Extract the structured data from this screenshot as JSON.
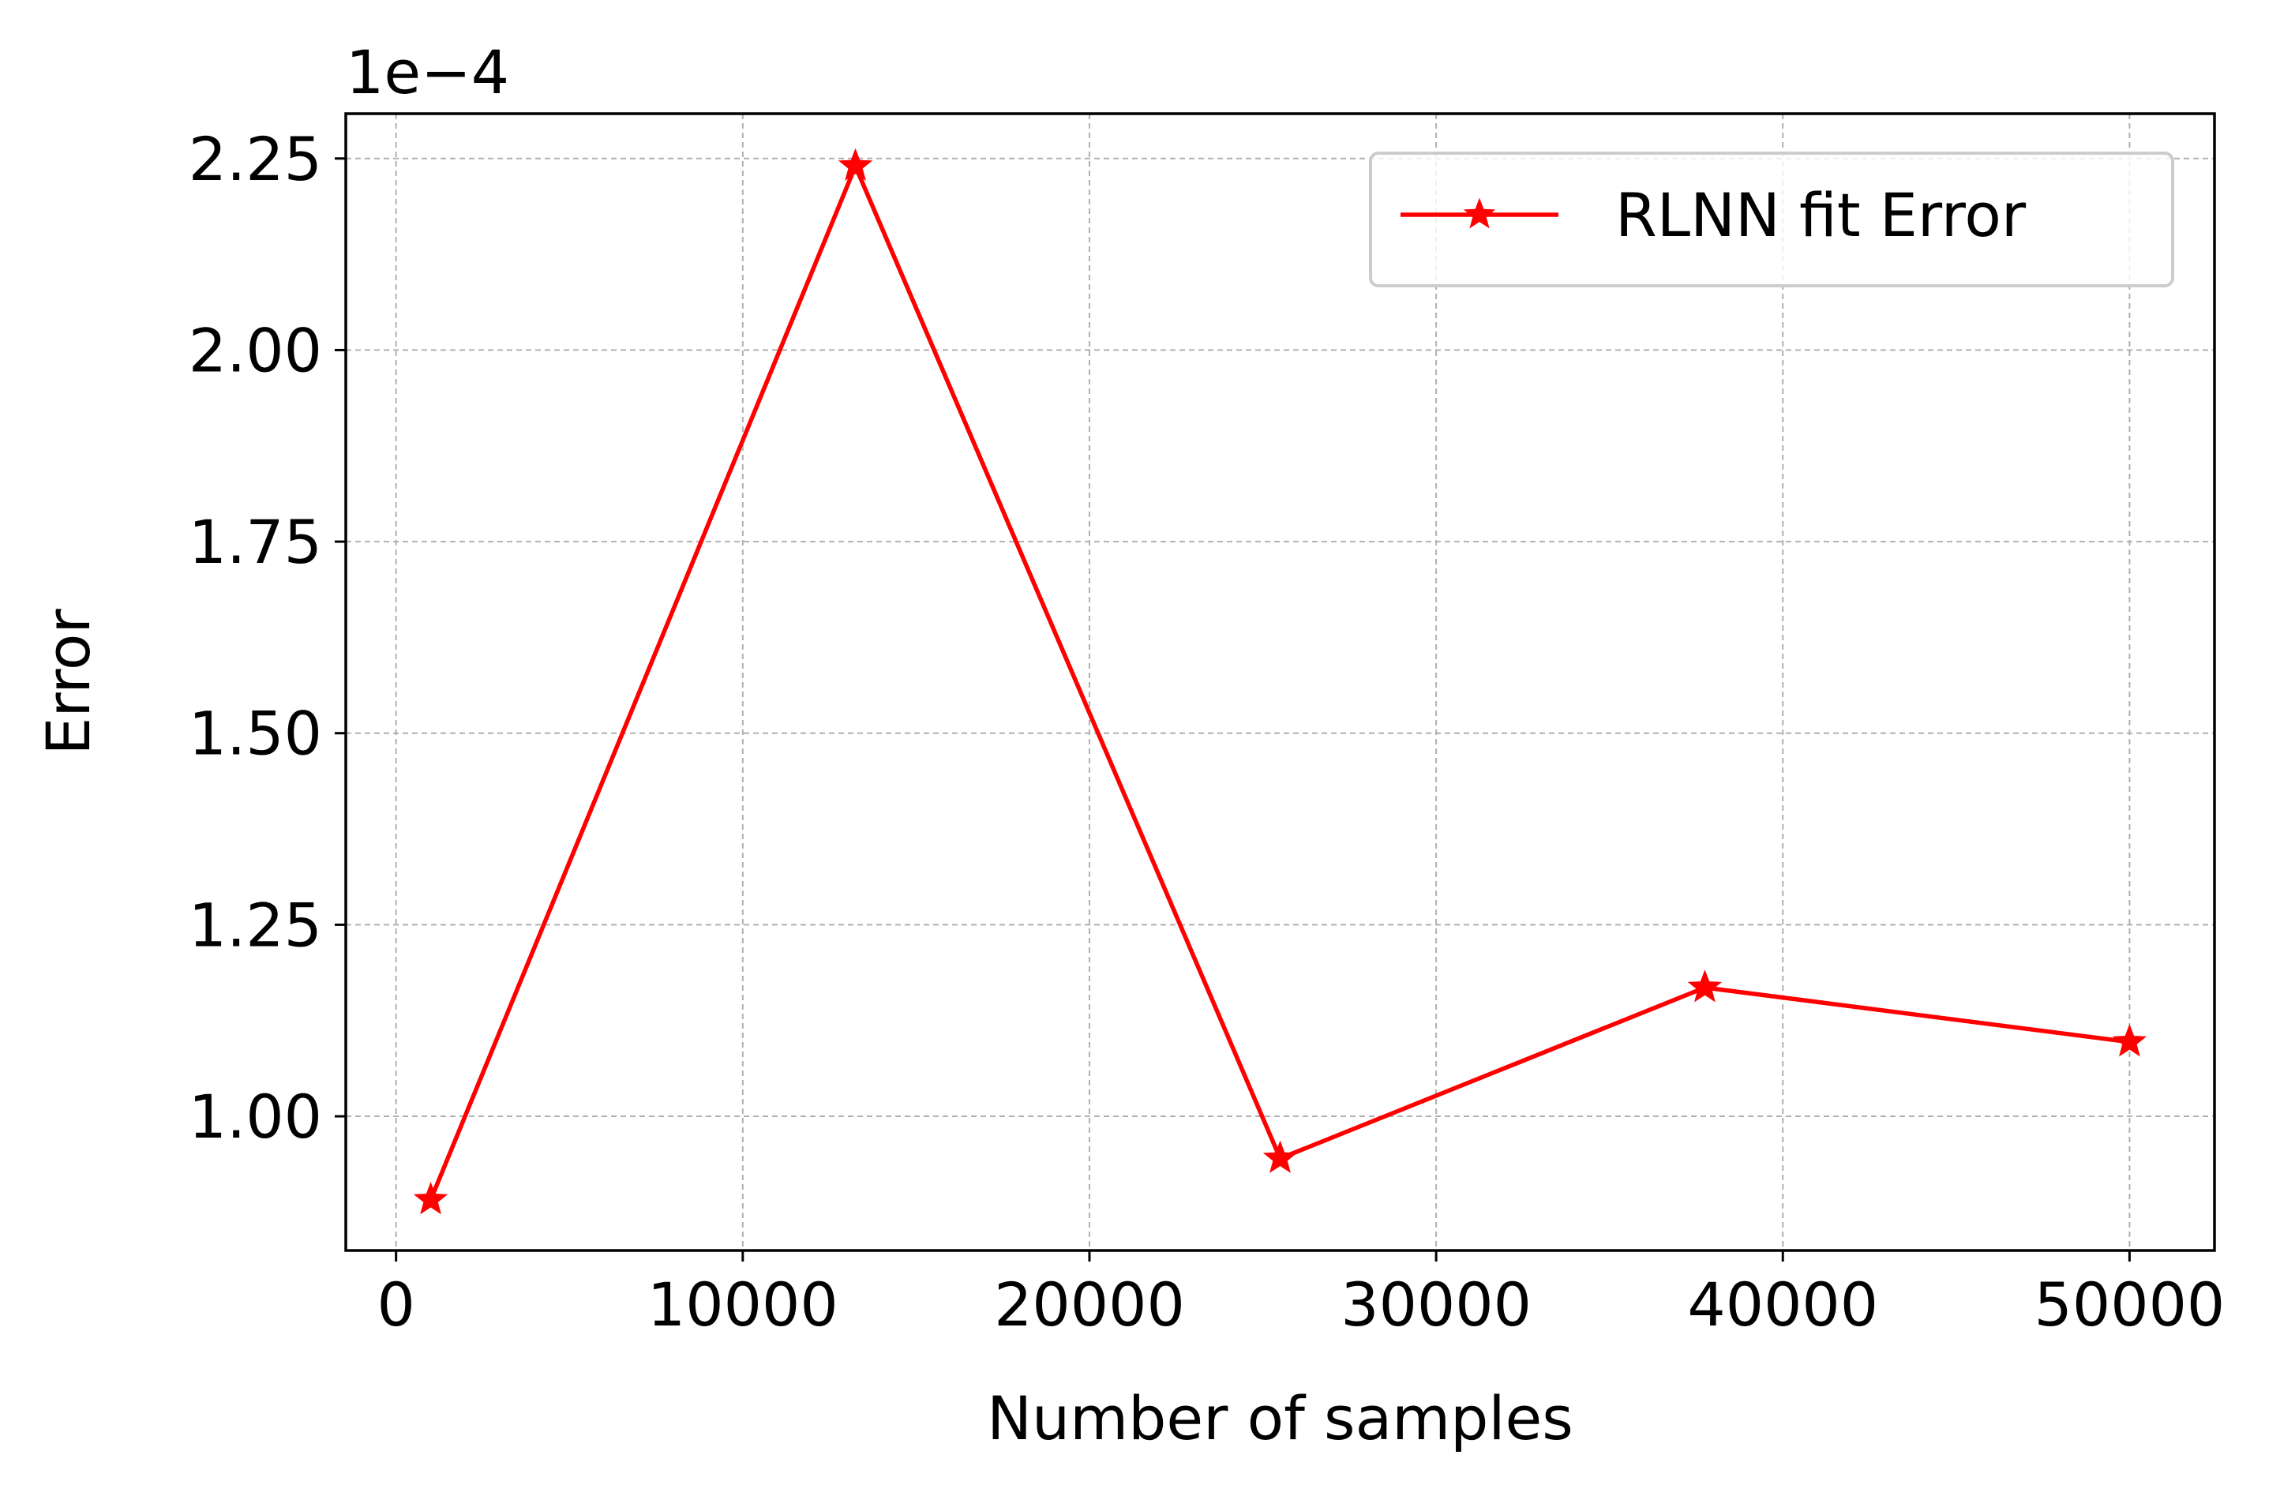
{
  "chart_data": {
    "type": "line",
    "title": "",
    "xlabel": "Number of samples",
    "ylabel": "Error",
    "y_offset_label": "1e−4",
    "xlim": [
      -1450,
      52450
    ],
    "ylim": [
      0.8249,
      2.3085
    ],
    "xticks": [
      0,
      10000,
      20000,
      30000,
      40000,
      50000
    ],
    "xtick_labels": [
      "0",
      "10000",
      "20000",
      "30000",
      "40000",
      "50000"
    ],
    "yticks": [
      1.0,
      1.25,
      1.5,
      1.75,
      2.0,
      2.25
    ],
    "ytick_labels": [
      "1.00",
      "1.25",
      "1.50",
      "1.75",
      "2.00",
      "2.25"
    ],
    "grid": true,
    "legend_position": "upper right",
    "series": [
      {
        "name": "RLNN fit Error",
        "color": "#ff0000",
        "marker": "star",
        "x": [
          1000,
          13250,
          25500,
          37750,
          50000
        ],
        "y": [
          0.891,
          2.24,
          0.945,
          1.168,
          1.097
        ]
      }
    ]
  }
}
